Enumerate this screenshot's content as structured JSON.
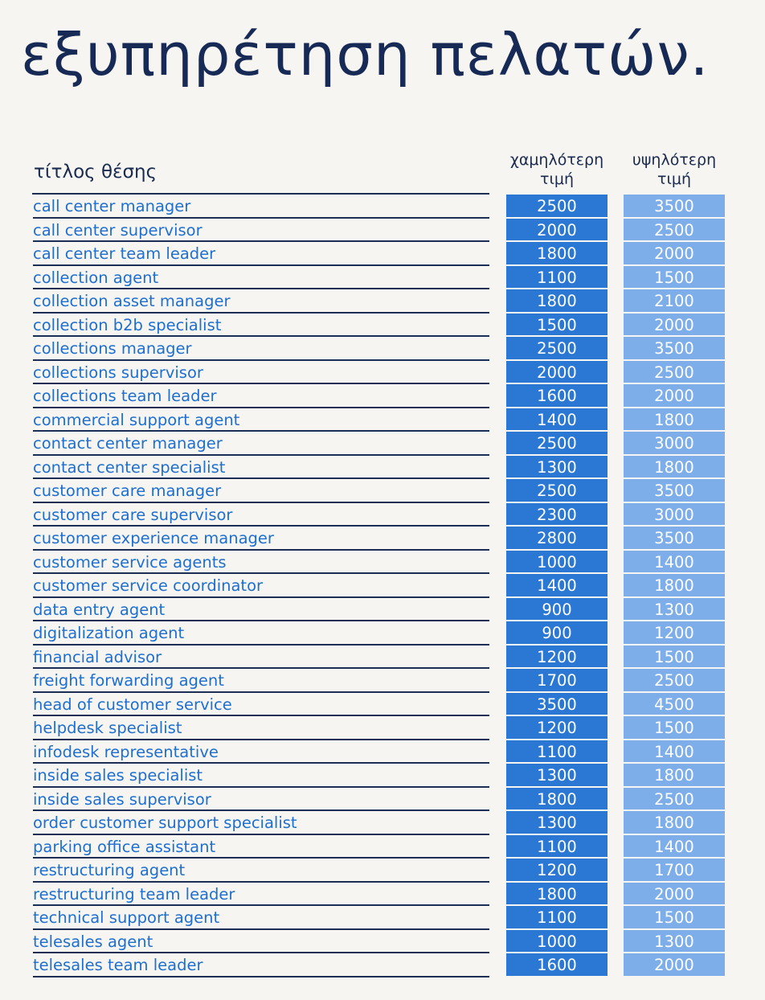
{
  "page": {
    "title": "εξυπηρέτηση πελατών."
  },
  "table": {
    "headers": {
      "title": "τίτλος θέσης",
      "low": "χαμηλότερη\nτιμή",
      "high": "υψηλότερη\nτιμή"
    },
    "rows": [
      {
        "title": "call center manager",
        "low": "2500",
        "high": "3500"
      },
      {
        "title": "call center supervisor",
        "low": "2000",
        "high": "2500"
      },
      {
        "title": "call center team leader",
        "low": "1800",
        "high": "2000"
      },
      {
        "title": "collection agent",
        "low": "1100",
        "high": "1500"
      },
      {
        "title": "collection asset manager",
        "low": "1800",
        "high": "2100"
      },
      {
        "title": "collection b2b specialist",
        "low": "1500",
        "high": "2000"
      },
      {
        "title": "collections manager",
        "low": "2500",
        "high": "3500"
      },
      {
        "title": "collections supervisor",
        "low": "2000",
        "high": "2500"
      },
      {
        "title": "collections team leader",
        "low": "1600",
        "high": "2000"
      },
      {
        "title": "commercial support agent",
        "low": "1400",
        "high": "1800"
      },
      {
        "title": "contact center manager",
        "low": "2500",
        "high": "3000"
      },
      {
        "title": "contact center specialist",
        "low": "1300",
        "high": "1800"
      },
      {
        "title": "customer care manager",
        "low": "2500",
        "high": "3500"
      },
      {
        "title": "customer care supervisor",
        "low": "2300",
        "high": "3000"
      },
      {
        "title": "customer experience manager",
        "low": "2800",
        "high": "3500"
      },
      {
        "title": "customer service agents",
        "low": "1000",
        "high": "1400"
      },
      {
        "title": "customer service coordinator",
        "low": "1400",
        "high": "1800"
      },
      {
        "title": "data entry agent",
        "low": "900",
        "high": "1300"
      },
      {
        "title": "digitalization agent",
        "low": "900",
        "high": "1200"
      },
      {
        "title": "financial advisor",
        "low": "1200",
        "high": "1500"
      },
      {
        "title": "freight forwarding agent",
        "low": "1700",
        "high": "2500"
      },
      {
        "title": "head of customer service",
        "low": "3500",
        "high": "4500"
      },
      {
        "title": "helpdesk specialist",
        "low": "1200",
        "high": "1500"
      },
      {
        "title": "infodesk representative",
        "low": "1100",
        "high": "1400"
      },
      {
        "title": "inside sales specialist",
        "low": "1300",
        "high": "1800"
      },
      {
        "title": "inside sales supervisor",
        "low": "1800",
        "high": "2500"
      },
      {
        "title": "order customer support specialist",
        "low": "1300",
        "high": "1800"
      },
      {
        "title": "parking office assistant",
        "low": "1100",
        "high": "1400"
      },
      {
        "title": "restructuring agent",
        "low": "1200",
        "high": "1700"
      },
      {
        "title": "restructuring team leader",
        "low": "1800",
        "high": "2000"
      },
      {
        "title": "technical support agent",
        "low": "1100",
        "high": "1500"
      },
      {
        "title": "telesales agent",
        "low": "1000",
        "high": "1300"
      },
      {
        "title": "telesales team leader",
        "low": "1600",
        "high": "2000"
      }
    ]
  },
  "colors": {
    "background": "#f6f5f1",
    "title_text": "#172a56",
    "row_text": "#1e6fd0",
    "low_cell": "#2a77d4",
    "high_cell": "#7eaeea",
    "rule": "#1c2e54"
  }
}
